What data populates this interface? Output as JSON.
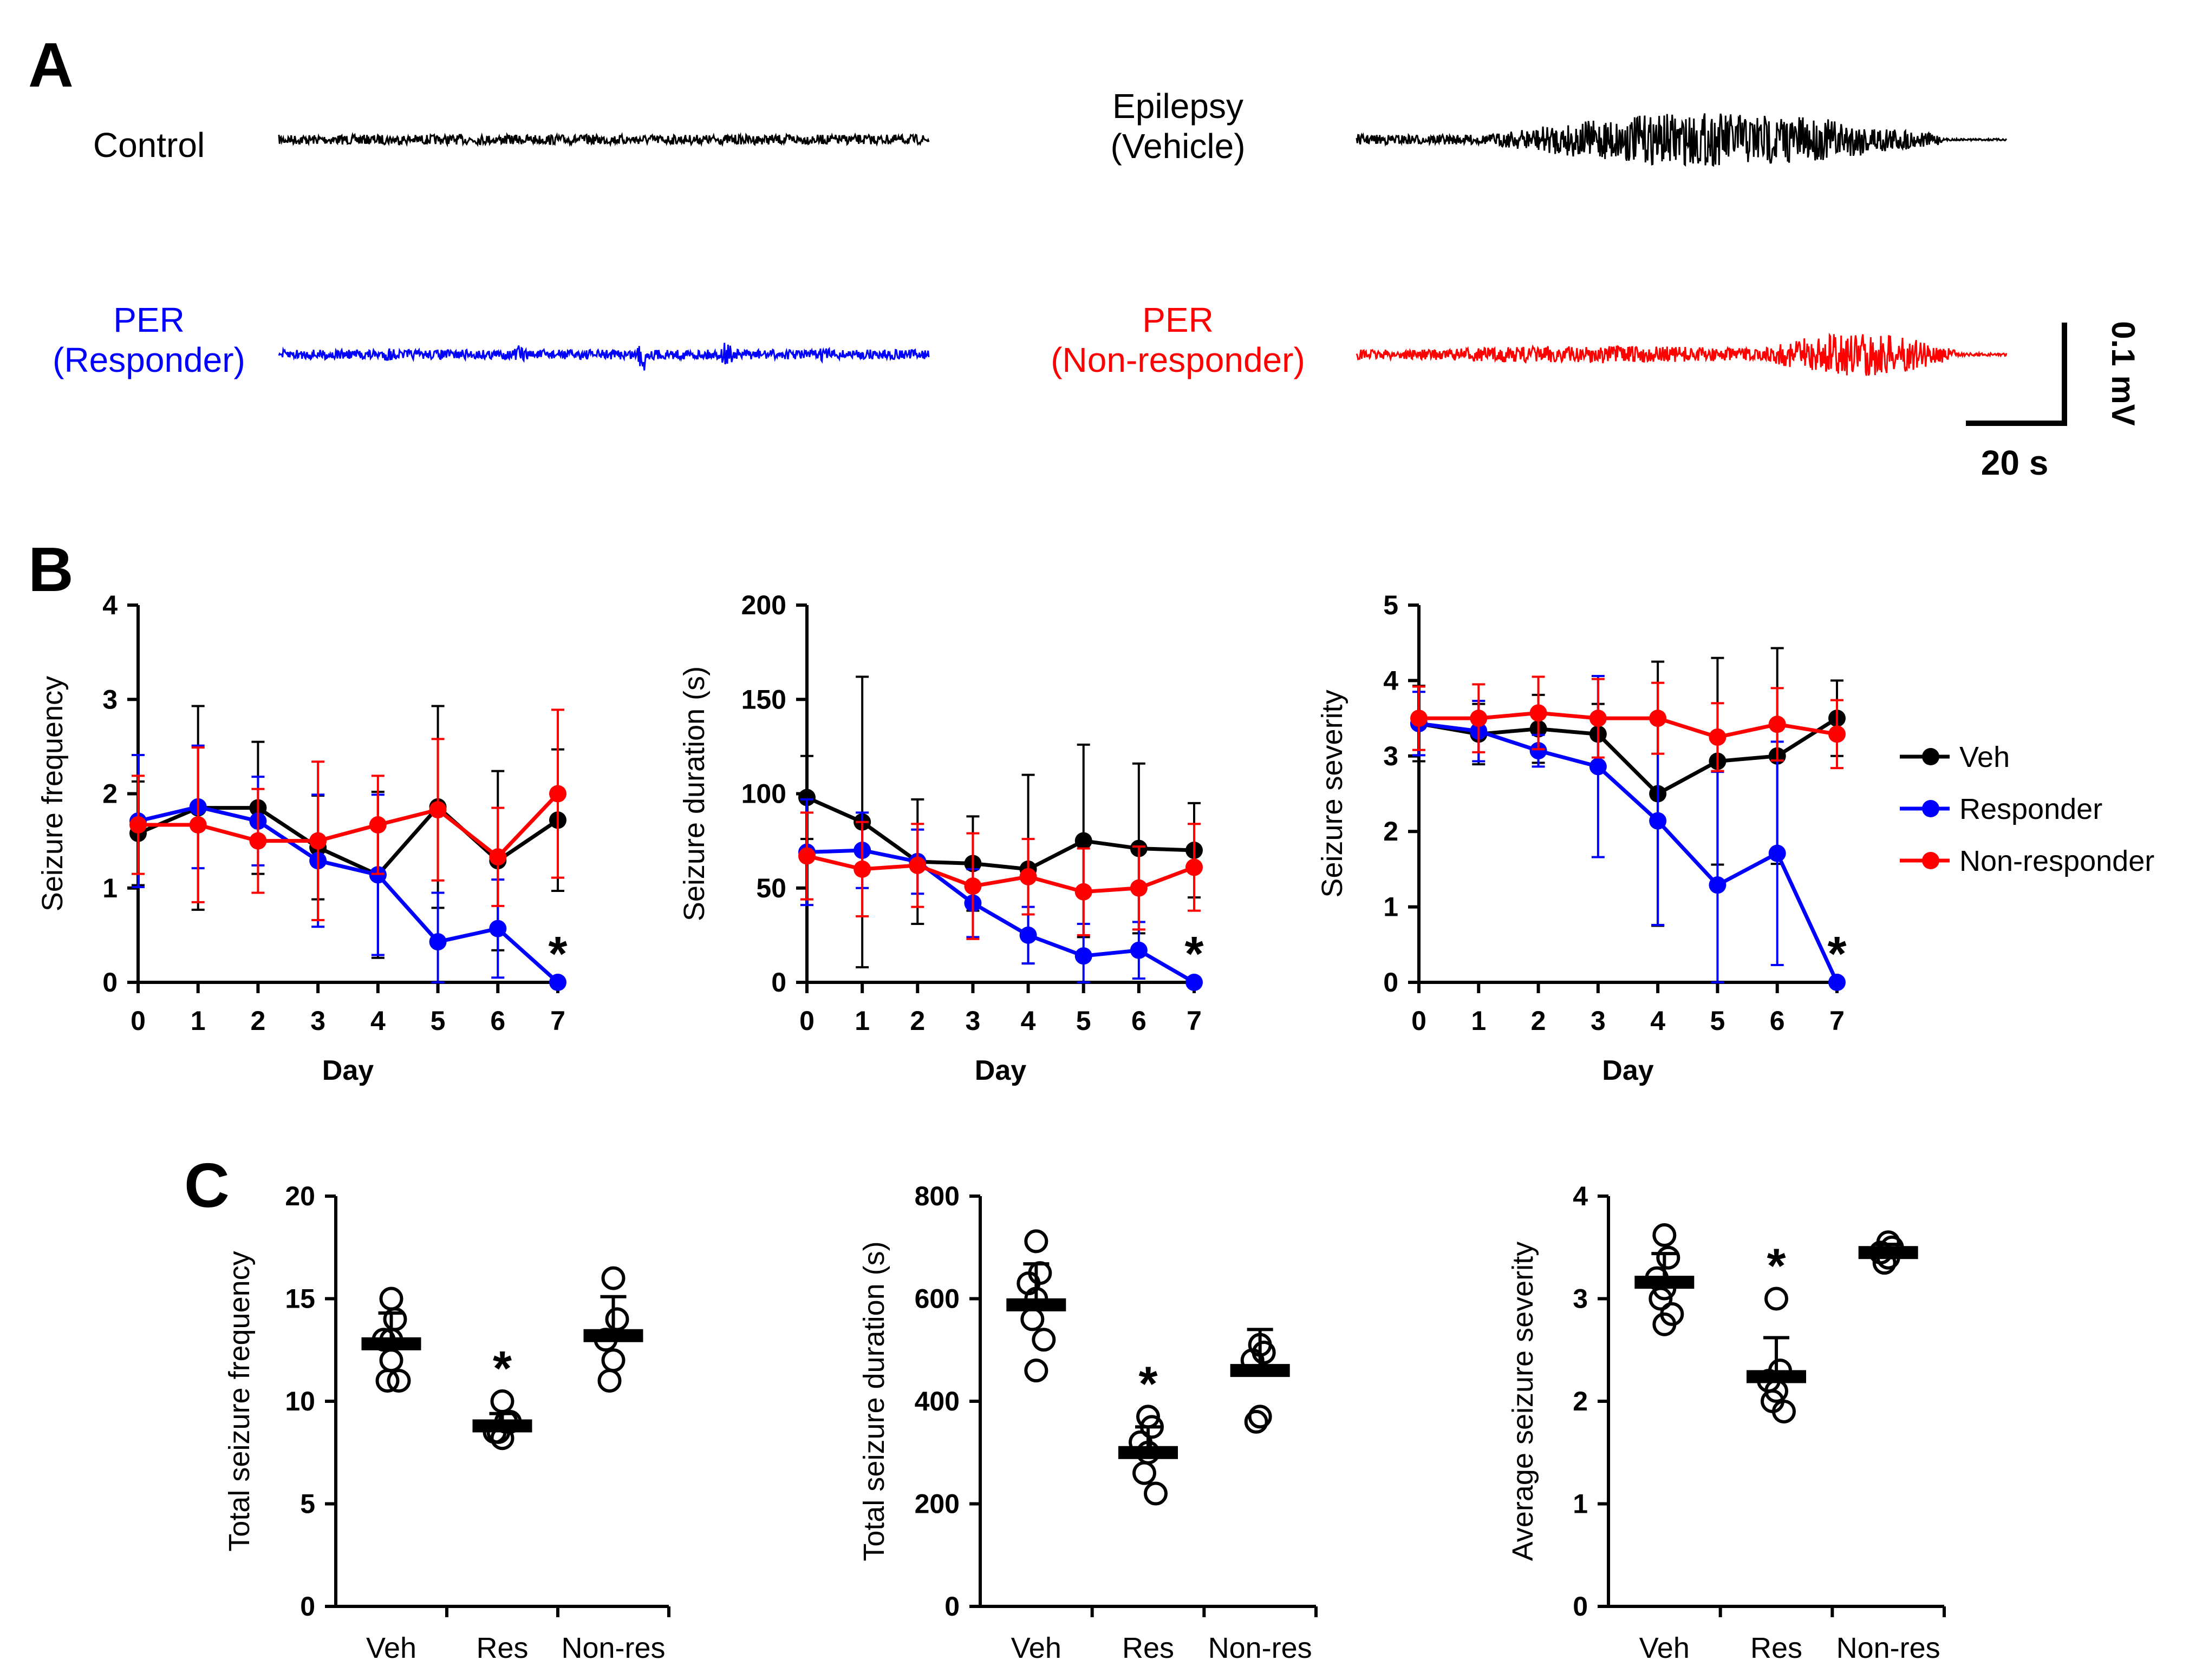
{
  "panel_labels": {
    "a": "A",
    "b": "B",
    "c": "C"
  },
  "colors": {
    "Veh": "#000000",
    "Responder": "#0000ff",
    "Non-responder": "#ff0000"
  },
  "traces": [
    {
      "id": "control",
      "lines": [
        "Control"
      ],
      "color": "#000000",
      "bursts": []
    },
    {
      "id": "epilepsy",
      "lines": [
        "Epilepsy",
        "(Vehicle)"
      ],
      "color": "#000000",
      "bursts": [
        [
          0.2,
          0.7,
          5.5
        ]
      ]
    },
    {
      "id": "responder",
      "lines": [
        "PER",
        "(Responder)"
      ],
      "color": "#0000ff",
      "bursts": [
        [
          0.16,
          0.02,
          1.5
        ],
        [
          0.36,
          0.02,
          2.0
        ],
        [
          0.55,
          0.02,
          4.0
        ],
        [
          0.68,
          0.02,
          3.0
        ],
        [
          0.83,
          0.02,
          1.5
        ]
      ]
    },
    {
      "id": "nonresponder",
      "lines": [
        "PER",
        "(Non-responder)"
      ],
      "color": "#ff0000",
      "bursts": [
        [
          0.1,
          0.55,
          1.8
        ],
        [
          0.62,
          0.3,
          4.5
        ]
      ]
    }
  ],
  "scale_bar": {
    "voltage": "0.1 mV",
    "time": "20 s"
  },
  "legend": [
    "Veh",
    "Responder",
    "Non-responder"
  ],
  "chart_data": [
    {
      "id": "B1",
      "type": "line",
      "title": "",
      "xlabel": "Day",
      "ylabel": "Seizure frequency",
      "x": [
        0,
        1,
        2,
        3,
        4,
        5,
        6,
        7
      ],
      "ylim": [
        0,
        4
      ],
      "yticks": [
        0,
        1,
        2,
        3,
        4
      ],
      "series": [
        {
          "name": "Veh",
          "values": [
            1.58,
            1.85,
            1.85,
            1.43,
            1.14,
            1.86,
            1.29,
            1.72
          ],
          "errors": [
            0.55,
            1.08,
            0.7,
            0.55,
            0.88,
            1.07,
            0.95,
            0.75
          ]
        },
        {
          "name": "Responder",
          "values": [
            1.71,
            1.86,
            1.71,
            1.29,
            1.14,
            0.43,
            0.57,
            0.0
          ],
          "errors": [
            0.7,
            0.65,
            0.47,
            0.7,
            0.85,
            0.52,
            0.52,
            0
          ]
        },
        {
          "name": "Non-responder",
          "values": [
            1.67,
            1.67,
            1.5,
            1.5,
            1.67,
            1.83,
            1.33,
            2.0
          ],
          "errors": [
            0.52,
            0.82,
            0.55,
            0.84,
            0.52,
            0.75,
            0.52,
            0.89
          ]
        }
      ],
      "annotations": [
        {
          "text": "*",
          "x": 7,
          "series": "Responder"
        }
      ]
    },
    {
      "id": "B2",
      "type": "line",
      "title": "",
      "xlabel": "Day",
      "ylabel": "Seizure duration (s)",
      "x": [
        0,
        1,
        2,
        3,
        4,
        5,
        6,
        7
      ],
      "ylim": [
        0,
        200
      ],
      "yticks": [
        0,
        50,
        100,
        150,
        200
      ],
      "series": [
        {
          "name": "Veh",
          "values": [
            98,
            85,
            64,
            63,
            60,
            75,
            71,
            70
          ],
          "errors": [
            22,
            77,
            33,
            25,
            50,
            51,
            45,
            25
          ]
        },
        {
          "name": "Responder",
          "values": [
            69,
            70,
            64,
            42,
            25,
            14,
            17,
            0
          ],
          "errors": [
            28,
            20,
            17,
            18,
            15,
            17,
            15,
            0
          ]
        },
        {
          "name": "Non-responder",
          "values": [
            67,
            60,
            62,
            51,
            56,
            48,
            50,
            61
          ],
          "errors": [
            23,
            25,
            22,
            28,
            20,
            23,
            22,
            23
          ]
        }
      ],
      "annotations": [
        {
          "text": "*",
          "x": 7,
          "series": "Responder"
        }
      ]
    },
    {
      "id": "B3",
      "type": "line",
      "title": "",
      "xlabel": "Day",
      "ylabel": "Seizure severity",
      "x": [
        0,
        1,
        2,
        3,
        4,
        5,
        6,
        7
      ],
      "ylim": [
        0,
        5
      ],
      "yticks": [
        0,
        1,
        2,
        3,
        4,
        5
      ],
      "series": [
        {
          "name": "Veh",
          "values": [
            3.43,
            3.29,
            3.36,
            3.29,
            2.5,
            2.93,
            3.0,
            3.5
          ],
          "errors": [
            0.5,
            0.4,
            0.45,
            0.4,
            1.75,
            1.37,
            1.43,
            0.5
          ]
        },
        {
          "name": "Responder",
          "values": [
            3.43,
            3.33,
            3.07,
            2.86,
            2.14,
            1.29,
            1.71,
            0.0
          ],
          "errors": [
            0.42,
            0.4,
            0.21,
            1.2,
            1.38,
            1.5,
            1.48,
            0
          ]
        },
        {
          "name": "Non-responder",
          "values": [
            3.5,
            3.5,
            3.57,
            3.5,
            3.5,
            3.25,
            3.42,
            3.29
          ],
          "errors": [
            0.42,
            0.45,
            0.48,
            0.52,
            0.47,
            0.45,
            0.48,
            0.45
          ]
        }
      ],
      "annotations": [
        {
          "text": "*",
          "x": 7,
          "series": "Responder"
        }
      ]
    },
    {
      "id": "C1",
      "type": "scatter",
      "title": "",
      "xlabel": "",
      "ylabel": "Total seizure frequency",
      "categories": [
        "Veh",
        "Res",
        "Non-res"
      ],
      "ylim": [
        0,
        20
      ],
      "yticks": [
        0,
        5,
        10,
        15,
        20
      ],
      "groups": [
        {
          "name": "Veh",
          "mean": 12.8,
          "sd": 1.5,
          "points": [
            15,
            14,
            13,
            12,
            11,
            11,
            13
          ]
        },
        {
          "name": "Res",
          "mean": 8.8,
          "sd": 0.6,
          "points": [
            10,
            9,
            8.5,
            8.2,
            8.5,
            9
          ]
        },
        {
          "name": "Non-res",
          "mean": 13.2,
          "sd": 1.9,
          "points": [
            16,
            14,
            13,
            12,
            11
          ]
        }
      ],
      "annotations": [
        {
          "text": "*",
          "category": "Res"
        }
      ]
    },
    {
      "id": "C2",
      "type": "scatter",
      "title": "",
      "xlabel": "",
      "ylabel": "Total seizure duration (s)",
      "categories": [
        "Veh",
        "Res",
        "Non-res"
      ],
      "ylim": [
        0,
        800
      ],
      "yticks": [
        0,
        200,
        400,
        600,
        800
      ],
      "groups": [
        {
          "name": "Veh",
          "mean": 588,
          "sd": 80,
          "points": [
            712,
            650,
            630,
            600,
            560,
            520,
            460
          ]
        },
        {
          "name": "Res",
          "mean": 300,
          "sd": 50,
          "points": [
            370,
            350,
            320,
            300,
            260,
            220
          ]
        },
        {
          "name": "Non-res",
          "mean": 460,
          "sd": 80,
          "points": [
            510,
            495,
            480,
            370,
            360
          ]
        }
      ],
      "annotations": [
        {
          "text": "*",
          "category": "Res"
        }
      ]
    },
    {
      "id": "C3",
      "type": "scatter",
      "title": "",
      "xlabel": "",
      "ylabel": "Average seizure severity",
      "categories": [
        "Veh",
        "Res",
        "Non-res"
      ],
      "ylim": [
        0,
        4
      ],
      "yticks": [
        0,
        1,
        2,
        3,
        4
      ],
      "groups": [
        {
          "name": "Veh",
          "mean": 3.16,
          "sd": 0.28,
          "points": [
            3.62,
            3.4,
            3.2,
            3.1,
            3.0,
            2.85,
            2.75
          ]
        },
        {
          "name": "Res",
          "mean": 2.24,
          "sd": 0.38,
          "points": [
            3.0,
            2.3,
            2.2,
            2.1,
            2.0,
            1.9
          ]
        },
        {
          "name": "Non-res",
          "mean": 3.45,
          "sd": 0.08,
          "points": [
            3.55,
            3.5,
            3.45,
            3.4,
            3.35
          ]
        }
      ],
      "annotations": [
        {
          "text": "*",
          "category": "Res"
        }
      ]
    }
  ]
}
